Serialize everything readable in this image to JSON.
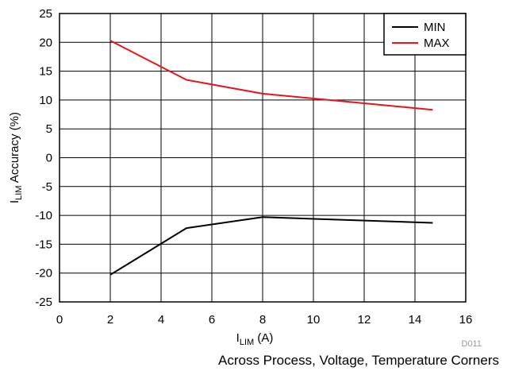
{
  "chart_data": {
    "type": "line",
    "xlabel_main": "I",
    "xlabel_sub": "LIM",
    "xlabel_unit": " (A)",
    "ylabel_main": "I",
    "ylabel_sub": "LIM",
    "ylabel_unit": " Accuracy (%)",
    "xlim": [
      0,
      16
    ],
    "ylim": [
      -25,
      25
    ],
    "xticks": [
      0,
      2,
      4,
      6,
      8,
      10,
      12,
      14,
      16
    ],
    "yticks": [
      25,
      20,
      15,
      10,
      5,
      0,
      -5,
      -10,
      -15,
      -20,
      -25
    ],
    "grid": true,
    "legend_position": "top-right",
    "series": [
      {
        "name": "MIN",
        "color": "#000000",
        "x": [
          2,
          5,
          8,
          14.7
        ],
        "y": [
          -20.3,
          -12.2,
          -10.3,
          -11.3
        ]
      },
      {
        "name": "MAX",
        "color": "#e8141b",
        "x": [
          2,
          5,
          8,
          14.7
        ],
        "y": [
          20.3,
          13.5,
          11.1,
          8.3
        ]
      }
    ]
  },
  "figure_code": "D011",
  "caption": "Across Process, Voltage, Temperature Corners"
}
